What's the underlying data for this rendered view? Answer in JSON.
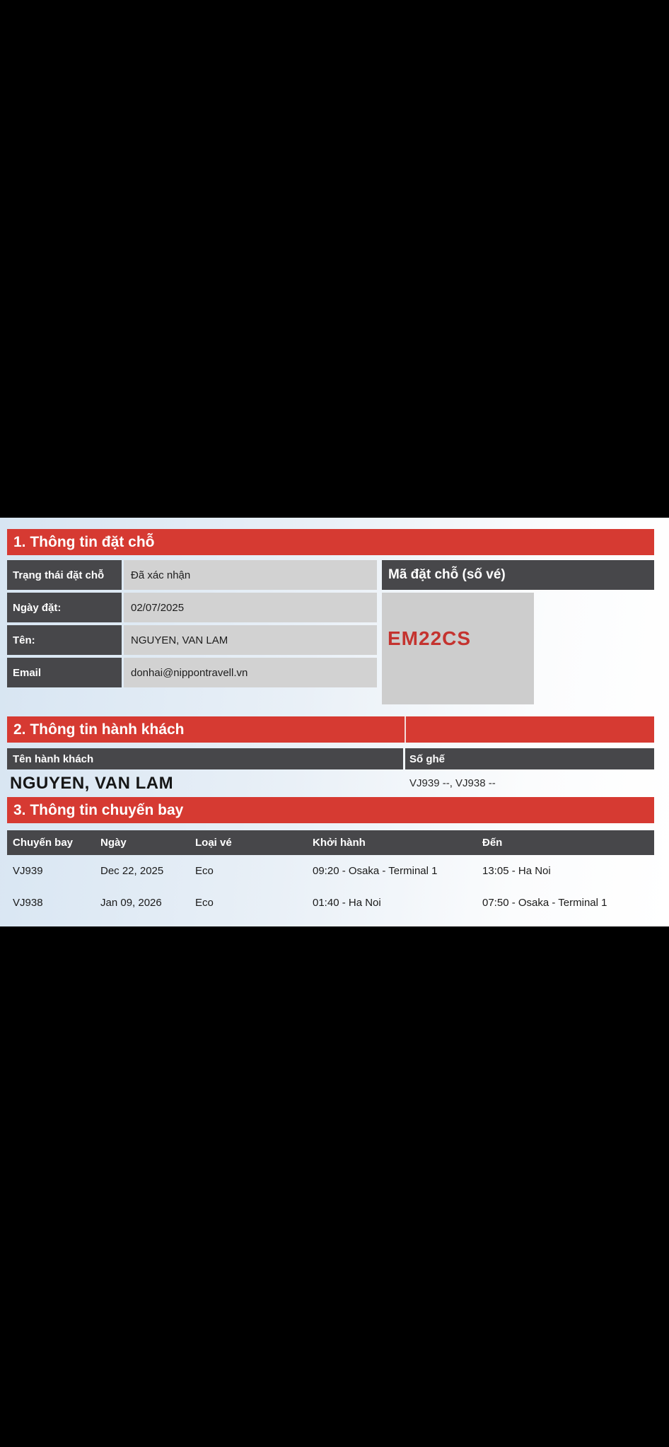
{
  "colors": {
    "canvas_bg": "#000000",
    "accent_red": "#d63a32",
    "dark_cell": "#47474a",
    "light_cell": "#d2d2d2",
    "code_text_red": "#c4332f",
    "content_bg_left": "#d7e5f2",
    "content_bg_right": "#ffffff"
  },
  "booking": {
    "section_title": "1. Thông tin đặt chỗ",
    "fields": [
      {
        "label": "Trạng thái đặt chỗ",
        "value": "Đã xác nhận"
      },
      {
        "label": "Ngày đặt:",
        "value": "02/07/2025"
      },
      {
        "label": "Tên:",
        "value": "NGUYEN, VAN LAM"
      },
      {
        "label": "Email",
        "value": "donhai@nippontravell.vn"
      }
    ],
    "code_header": "Mã đặt chỗ (số vé)",
    "code_value": "EM22CS"
  },
  "passenger": {
    "section_title": "2. Thông tin hành khách",
    "name_header": "Tên hành khách",
    "seat_header": "Số ghế",
    "name_value": "NGUYEN, VAN LAM",
    "seat_value": "VJ939 --, VJ938 --"
  },
  "flights": {
    "section_title": "3. Thông tin chuyến bay",
    "columns": [
      "Chuyến bay",
      "Ngày",
      "Loại vé",
      "Khởi hành",
      "Đến"
    ],
    "rows": [
      [
        "VJ939",
        "Dec 22, 2025",
        "Eco",
        "09:20 - Osaka - Terminal 1",
        "13:05 - Ha Noi"
      ],
      [
        "VJ938",
        "Jan 09, 2026",
        "Eco",
        "01:40 - Ha Noi",
        "07:50 - Osaka - Terminal 1"
      ]
    ]
  }
}
